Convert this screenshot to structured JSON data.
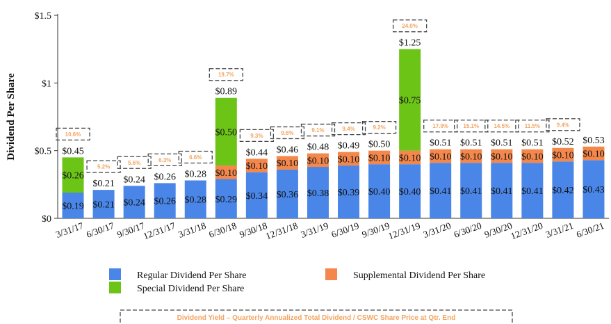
{
  "chart_data": {
    "type": "bar",
    "stacked": true,
    "ylabel": "Dividend Per Share",
    "ylim": [
      0,
      1.5
    ],
    "yticks": [
      "$0",
      "$0.5",
      "$1",
      "$1.5"
    ],
    "grid": false,
    "categories": [
      "3/31/17",
      "6/30/17",
      "9/30/17",
      "12/31/17",
      "3/31/18",
      "6/30/18",
      "9/30/18",
      "12/31/18",
      "3/31/19",
      "6/30/19",
      "9/30/19",
      "12/31/19",
      "3/31/20",
      "6/30/20",
      "9/30/20",
      "12/31/20",
      "3/31/21",
      "6/30/21"
    ],
    "series": [
      {
        "name": "Regular Dividend Per Share",
        "color": "#4a86e8",
        "values": [
          0.19,
          0.21,
          0.24,
          0.26,
          0.28,
          0.29,
          0.34,
          0.36,
          0.38,
          0.39,
          0.4,
          0.4,
          0.41,
          0.41,
          0.41,
          0.41,
          0.42,
          0.43
        ],
        "labels": [
          "$0.19",
          "$0.21",
          "$0.24",
          "$0.26",
          "$0.28",
          "$0.29",
          "$0.34",
          "$0.36",
          "$0.38",
          "$0.39",
          "$0.40",
          "$0.40",
          "$0.41",
          "$0.41",
          "$0.41",
          "$0.41",
          "$0.42",
          "$0.43"
        ]
      },
      {
        "name": "Supplemental Dividend Per Share",
        "color": "#f4874b",
        "values": [
          0,
          0,
          0,
          0,
          0,
          0.1,
          0.1,
          0.1,
          0.1,
          0.1,
          0.1,
          0.1,
          0.1,
          0.1,
          0.1,
          0.1,
          0.1,
          0.1
        ],
        "labels": [
          "",
          "",
          "",
          "",
          "",
          "$0.10",
          "$0.10",
          "$0.10",
          "$0.10",
          "$0.10",
          "$0.10",
          "$0.10",
          "$0.10",
          "$0.10",
          "$0.10",
          "$0.10",
          "$0.10",
          "$0.10"
        ]
      },
      {
        "name": "Special Dividend Per Share",
        "color": "#6cc417",
        "values": [
          0.26,
          0,
          0,
          0,
          0,
          0.5,
          0,
          0,
          0,
          0,
          0,
          0.75,
          0,
          0,
          0,
          0,
          0,
          0
        ],
        "labels": [
          "$0.26",
          "",
          "",
          "",
          "",
          "$0.50",
          "",
          "",
          "",
          "",
          "",
          "$0.75",
          "",
          "",
          "",
          "",
          "",
          ""
        ]
      }
    ],
    "totals": [
      "$0.45",
      "$0.21",
      "$0.24",
      "$0.26",
      "$0.28",
      "$0.89",
      "$0.44",
      "$0.46",
      "$0.48",
      "$0.49",
      "$0.50",
      "$1.25",
      "$0.51",
      "$0.51",
      "$0.51",
      "$0.51",
      "$0.52",
      "$0.53"
    ],
    "totals_values": [
      0.45,
      0.21,
      0.24,
      0.26,
      0.28,
      0.89,
      0.44,
      0.46,
      0.48,
      0.49,
      0.5,
      1.25,
      0.51,
      0.51,
      0.51,
      0.51,
      0.52,
      0.53
    ],
    "yields": [
      "10.6%",
      "5.2%",
      "5.6%",
      "6.3%",
      "6.6%",
      "19.7%",
      "9.3%",
      "9.6%",
      "9.1%",
      "9.4%",
      "9.2%",
      "24.0%",
      "17.9%",
      "15.1%",
      "14.5%",
      "11.5%",
      "9.4%",
      ""
    ],
    "yield_color": "#f4a460",
    "legend": {
      "position": "bottom",
      "order": [
        "Regular Dividend Per Share",
        "Supplemental Dividend Per Share",
        "Special Dividend Per Share"
      ]
    },
    "footnote": "Dividend Yield – Quarterly Annualized Total Dividend / CSWC Share Price at Qtr. End"
  }
}
